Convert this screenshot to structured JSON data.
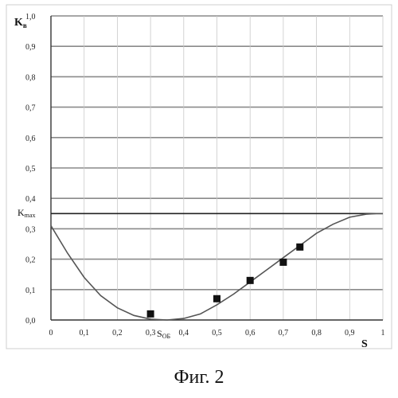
{
  "chart_data": {
    "type": "line",
    "title": "",
    "ylabel": "K",
    "ylabel_sub": "в",
    "xlabel": "S",
    "xlim": [
      0,
      1
    ],
    "ylim": [
      0,
      1
    ],
    "grid": true,
    "x_ticks": [
      "0",
      "0,1",
      "0,2",
      "0,3",
      "0,4",
      "0,5",
      "0,6",
      "0,7",
      "0,8",
      "0,9",
      "1"
    ],
    "y_ticks": [
      "0,0",
      "0,1",
      "0,2",
      "0,3",
      "0,4",
      "0,5",
      "0,6",
      "0,7",
      "0,8",
      "0,9",
      "1,0"
    ],
    "kmax": {
      "label": "K",
      "sub": "max",
      "value": 0.35
    },
    "sob": {
      "label": "S",
      "sub": "ОБ",
      "value": 0.35
    },
    "series": [
      {
        "style": "curve",
        "x": [
          0,
          0.05,
          0.1,
          0.15,
          0.2,
          0.25,
          0.3,
          0.35,
          0.4,
          0.45,
          0.5,
          0.55,
          0.6,
          0.65,
          0.7,
          0.75,
          0.8,
          0.85,
          0.9,
          0.95,
          0.98,
          1.0
        ],
        "y": [
          0.31,
          0.22,
          0.14,
          0.08,
          0.04,
          0.015,
          0.003,
          0.0,
          0.005,
          0.02,
          0.05,
          0.085,
          0.125,
          0.165,
          0.205,
          0.245,
          0.285,
          0.315,
          0.338,
          0.348,
          0.35,
          0.35
        ]
      },
      {
        "style": "points",
        "x": [
          0.3,
          0.5,
          0.6,
          0.7,
          0.75
        ],
        "y": [
          0.02,
          0.07,
          0.13,
          0.19,
          0.24
        ]
      }
    ]
  },
  "caption": "Фиг. 2"
}
